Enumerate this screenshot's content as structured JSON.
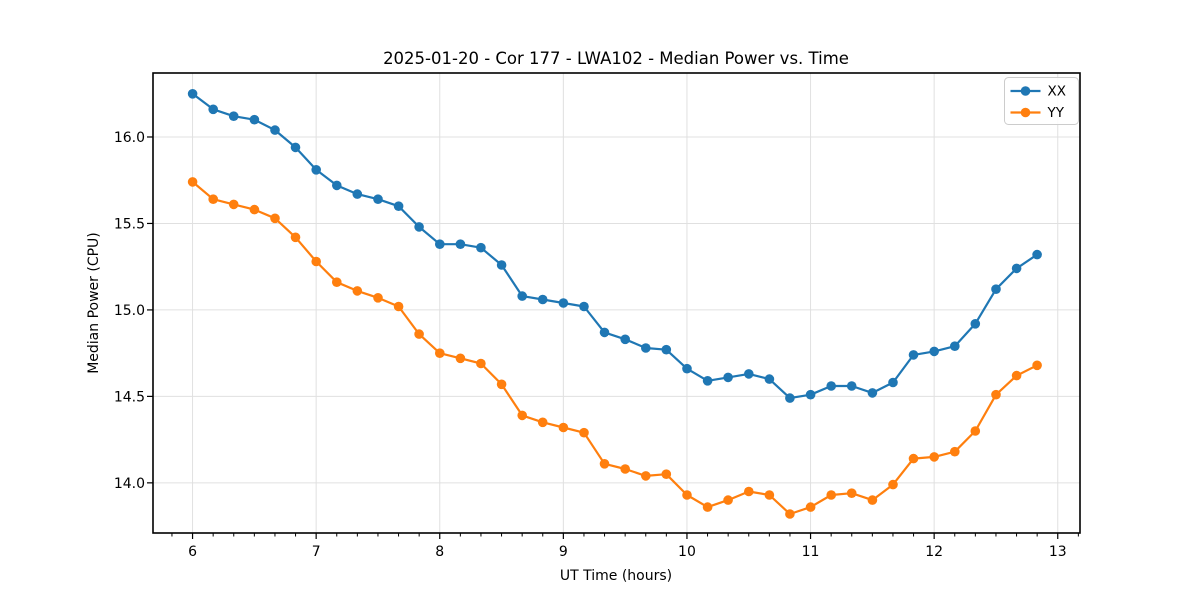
{
  "figure": {
    "background": "#ffffff",
    "plot_background": "#ffffff",
    "spine_color": "#000000",
    "grid_color": "#e0e0e0",
    "tick_color": "#000000"
  },
  "chart_data": {
    "type": "line",
    "title": "2025-01-20 - Cor 177 - LWA102 - Median Power vs. Time",
    "xlabel": "UT Time (hours)",
    "ylabel": "Median Power (CPU)",
    "xlim": [
      5.68,
      13.18
    ],
    "ylim": [
      13.71,
      16.37
    ],
    "grid": true,
    "legend_position": "upper right",
    "x_major_ticks": [
      6,
      7,
      8,
      9,
      10,
      11,
      12,
      13
    ],
    "x_tick_labels": [
      "6",
      "7",
      "8",
      "9",
      "10",
      "11",
      "12",
      "13"
    ],
    "x_minor_tick_step": 0.166667,
    "y_major_ticks": [
      14.0,
      14.5,
      15.0,
      15.5,
      16.0
    ],
    "y_tick_labels": [
      "14.0",
      "14.5",
      "15.0",
      "15.5",
      "16.0"
    ],
    "x": [
      6.0,
      6.167,
      6.333,
      6.5,
      6.667,
      6.833,
      7.0,
      7.167,
      7.333,
      7.5,
      7.667,
      7.833,
      8.0,
      8.167,
      8.333,
      8.5,
      8.667,
      8.833,
      9.0,
      9.167,
      9.333,
      9.5,
      9.667,
      9.833,
      10.0,
      10.167,
      10.333,
      10.5,
      10.667,
      10.833,
      11.0,
      11.167,
      11.333,
      11.5,
      11.667,
      11.833,
      12.0,
      12.167,
      12.333,
      12.5,
      12.667,
      12.833
    ],
    "series": [
      {
        "name": "XX",
        "color": "#1f77b4",
        "marker": "circle",
        "values": [
          16.25,
          16.16,
          16.12,
          16.1,
          16.04,
          15.94,
          15.81,
          15.72,
          15.67,
          15.64,
          15.6,
          15.48,
          15.38,
          15.38,
          15.36,
          15.26,
          15.08,
          15.06,
          15.04,
          15.02,
          14.87,
          14.83,
          14.78,
          14.77,
          14.66,
          14.59,
          14.61,
          14.63,
          14.6,
          14.49,
          14.51,
          14.56,
          14.56,
          14.52,
          14.58,
          14.74,
          14.76,
          14.79,
          14.92,
          15.12,
          15.24,
          15.32
        ]
      },
      {
        "name": "YY",
        "color": "#ff7f0e",
        "marker": "circle",
        "values": [
          15.74,
          15.64,
          15.61,
          15.58,
          15.53,
          15.42,
          15.28,
          15.16,
          15.11,
          15.07,
          15.02,
          14.86,
          14.75,
          14.72,
          14.69,
          14.57,
          14.39,
          14.35,
          14.32,
          14.29,
          14.11,
          14.08,
          14.04,
          14.05,
          13.93,
          13.86,
          13.9,
          13.95,
          13.93,
          13.82,
          13.86,
          13.93,
          13.94,
          13.9,
          13.99,
          14.14,
          14.15,
          14.18,
          14.3,
          14.51,
          14.62,
          14.68
        ]
      }
    ]
  }
}
